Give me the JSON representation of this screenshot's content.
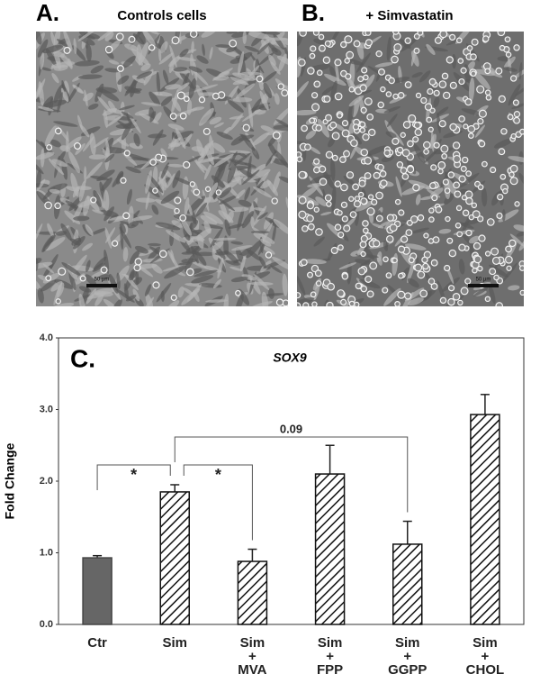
{
  "panels": [
    {
      "label": "A.",
      "title": "Controls cells",
      "scale_bar": "50 µm"
    },
    {
      "label": "B.",
      "title": "+ Simvastatin",
      "scale_bar": "50 µm"
    }
  ],
  "chart_data": {
    "type": "bar",
    "panel_label": "C.",
    "title": "SOX9",
    "ylabel": "Fold Change",
    "categories": [
      [
        "Ctr"
      ],
      [
        "Sim"
      ],
      [
        "Sim",
        "+",
        "MVA"
      ],
      [
        "Sim",
        "+",
        "FPP"
      ],
      [
        "Sim",
        "+",
        "GGPP"
      ],
      [
        "Sim",
        "+",
        "CHOL"
      ]
    ],
    "values": [
      0.93,
      1.85,
      0.88,
      2.1,
      1.12,
      2.93
    ],
    "errors": [
      0.03,
      0.1,
      0.17,
      0.4,
      0.32,
      0.28
    ],
    "bar_styles": [
      "solid",
      "hatched",
      "hatched",
      "hatched",
      "hatched",
      "hatched"
    ],
    "color": "#666666",
    "ylim": [
      0,
      4
    ],
    "yticks": [
      {
        "value": 0,
        "label": "0.0"
      },
      {
        "value": 1,
        "label": "1.0"
      },
      {
        "value": 2,
        "label": "2.0"
      },
      {
        "value": 3,
        "label": "3.0"
      },
      {
        "value": 4,
        "label": "4.0"
      }
    ],
    "annotations": [
      {
        "from": 0,
        "to": 1,
        "label": "*"
      },
      {
        "from": 1,
        "to": 2,
        "label": "*"
      },
      {
        "from": 1,
        "to": 4,
        "label": "0.09"
      }
    ]
  }
}
